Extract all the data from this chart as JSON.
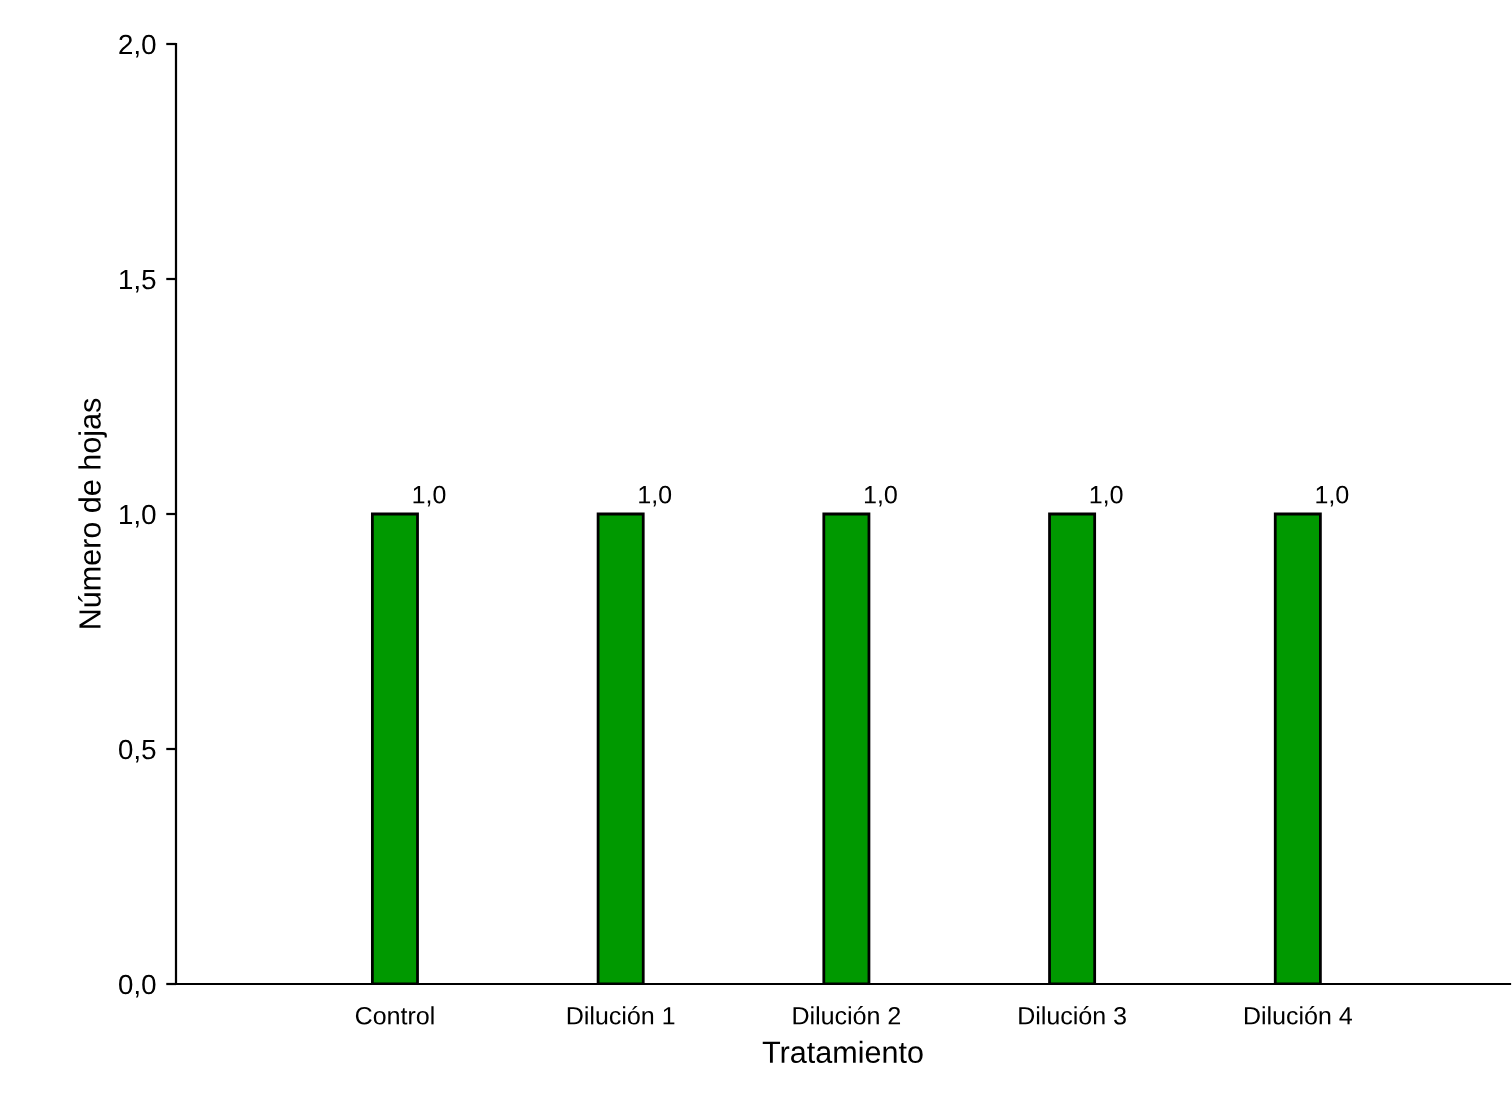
{
  "chart_data": {
    "type": "bar",
    "xlabel": "Tratamiento",
    "ylabel": "Número de hojas",
    "categories": [
      "Control",
      "Dilución 1",
      "Dilución 2",
      "Dilución 3",
      "Dilución 4"
    ],
    "values": [
      1.0,
      1.0,
      1.0,
      1.0,
      1.0
    ],
    "color": "#009900",
    "value_labels": [
      "1,0",
      "1,0",
      "1,0",
      "1,0",
      "1,0"
    ],
    "ylim": [
      0,
      2
    ],
    "yticks": [
      {
        "value": 0,
        "label": "0,0"
      },
      {
        "value": 0.5,
        "label": "0,5"
      },
      {
        "value": 1,
        "label": "1,0"
      },
      {
        "value": 1.5,
        "label": "1,5"
      },
      {
        "value": 2,
        "label": "2,0"
      }
    ],
    "grid": false,
    "legend": false
  }
}
